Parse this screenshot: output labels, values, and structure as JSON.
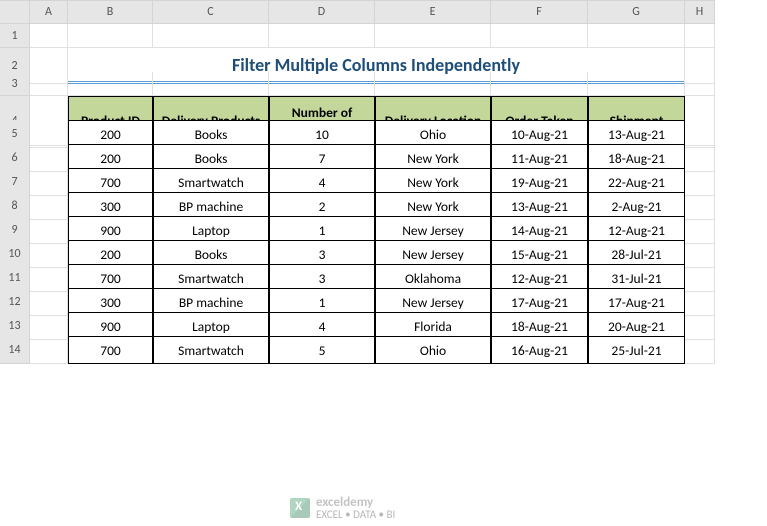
{
  "columns": [
    "A",
    "B",
    "C",
    "D",
    "E",
    "F",
    "G",
    "H"
  ],
  "row_count": 15,
  "title": "Filter Multiple Columns Independently",
  "title_color": "#1f4e79",
  "title_underline_color": "#5b9bd5",
  "header_bg": "#c4d79b",
  "headers": [
    "Product ID",
    "Delivery Products",
    "Number of Products",
    "Delivery Location",
    "Order Taken",
    "Shipment"
  ],
  "rows": [
    [
      "200",
      "Books",
      "10",
      "Ohio",
      "10-Aug-21",
      "13-Aug-21"
    ],
    [
      "200",
      "Books",
      "7",
      "New York",
      "11-Aug-21",
      "18-Aug-21"
    ],
    [
      "700",
      "Smartwatch",
      "4",
      "New York",
      "19-Aug-21",
      "22-Aug-21"
    ],
    [
      "300",
      "BP machine",
      "2",
      "New York",
      "13-Aug-21",
      "2-Aug-21"
    ],
    [
      "900",
      "Laptop",
      "1",
      "New Jersey",
      "14-Aug-21",
      "12-Aug-21"
    ],
    [
      "200",
      "Books",
      "3",
      "New Jersey",
      "15-Aug-21",
      "28-Jul-21"
    ],
    [
      "700",
      "Smartwatch",
      "3",
      "Oklahoma",
      "12-Aug-21",
      "31-Jul-21"
    ],
    [
      "300",
      "BP machine",
      "1",
      "New Jersey",
      "17-Aug-21",
      "17-Aug-21"
    ],
    [
      "900",
      "Laptop",
      "4",
      "Florida",
      "18-Aug-21",
      "20-Aug-21"
    ],
    [
      "700",
      "Smartwatch",
      "5",
      "Ohio",
      "16-Aug-21",
      "25-Jul-21"
    ]
  ],
  "watermark": {
    "brand": "exceldemy",
    "tagline": "EXCEL • DATA • BI"
  }
}
